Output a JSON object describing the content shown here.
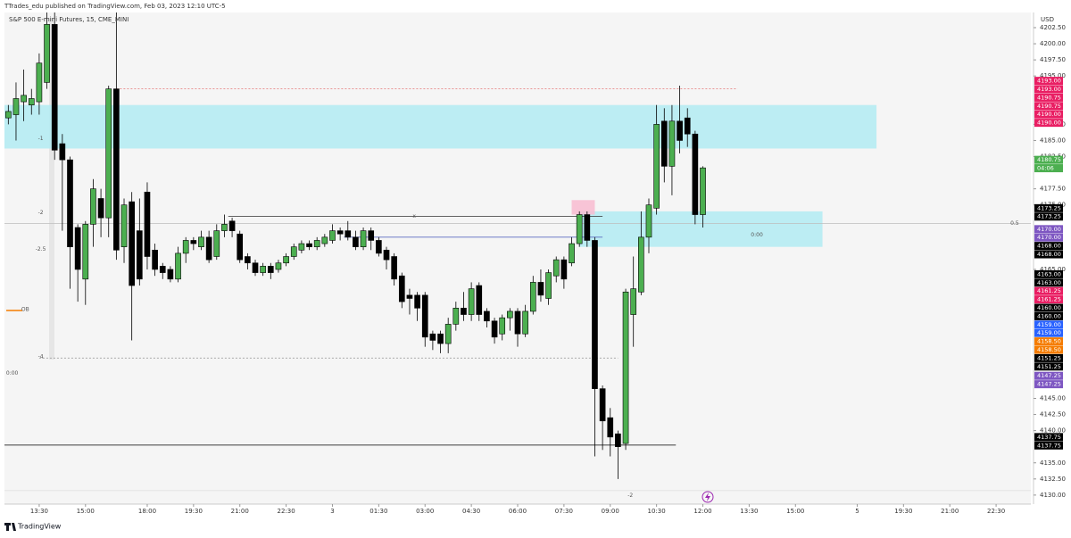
{
  "header": {
    "publisher": "TTrades_edu published on TradingView.com, Feb 03, 2023 12:10 UTC-5",
    "brand": "TradingView"
  },
  "chart_data": {
    "type": "candlestick",
    "title": "S&P 500 E-mini Futures, 15, CME_MINI",
    "currency": "USD",
    "up_color": "#4caf50",
    "down_color": "#000000",
    "xlim": [
      -4.5,
      128.5
    ],
    "ylim": [
      4128.6,
      4204.85
    ],
    "xticks": [
      {
        "value": 0,
        "label": "13:30"
      },
      {
        "value": 6,
        "label": "15:00"
      },
      {
        "value": 14,
        "label": "18:00"
      },
      {
        "value": 20,
        "label": "19:30"
      },
      {
        "value": 26,
        "label": "21:00"
      },
      {
        "value": 32,
        "label": "22:30"
      },
      {
        "value": 38,
        "label": "3"
      },
      {
        "value": 44,
        "label": "01:30"
      },
      {
        "value": 50,
        "label": "03:00"
      },
      {
        "value": 56,
        "label": "04:30"
      },
      {
        "value": 62,
        "label": "06:00"
      },
      {
        "value": 68,
        "label": "07:30"
      },
      {
        "value": 74,
        "label": "09:00"
      },
      {
        "value": 80,
        "label": "10:30"
      },
      {
        "value": 86,
        "label": "12:00"
      },
      {
        "value": 92,
        "label": "13:30"
      },
      {
        "value": 98,
        "label": "15:00"
      },
      {
        "value": 106,
        "label": "5"
      },
      {
        "value": 112,
        "label": "19:30"
      },
      {
        "value": 118,
        "label": "21:00"
      },
      {
        "value": 124,
        "label": "22:30"
      }
    ],
    "yticks": [
      {
        "value": 4202.5,
        "label": "4202.50"
      },
      {
        "value": 4200,
        "label": "4200.00"
      },
      {
        "value": 4197.5,
        "label": "4197.50"
      },
      {
        "value": 4195,
        "label": "4195.00"
      },
      {
        "value": 4187.5,
        "label": "4187.50"
      },
      {
        "value": 4185,
        "label": "4185.00"
      },
      {
        "value": 4182.5,
        "label": "4182.50"
      },
      {
        "value": 4177.5,
        "label": "4177.50"
      },
      {
        "value": 4175,
        "label": "4175.00"
      },
      {
        "value": 4165,
        "label": "4165.00"
      },
      {
        "value": 4145,
        "label": "4145.00"
      },
      {
        "value": 4142.5,
        "label": "4142.50"
      },
      {
        "value": 4140,
        "label": "4140.00"
      },
      {
        "value": 4135,
        "label": "4135.00"
      },
      {
        "value": 4132.5,
        "label": "4132.50"
      },
      {
        "value": 4130,
        "label": "4130.00"
      }
    ],
    "x": [
      -4,
      -3,
      -2,
      -1,
      0,
      1,
      2,
      3,
      4,
      5,
      6,
      7,
      8,
      9,
      10,
      11,
      12,
      13,
      14,
      15,
      16,
      17,
      18,
      19,
      20,
      21,
      22,
      23,
      24,
      25,
      26,
      27,
      28,
      29,
      30,
      31,
      32,
      33,
      34,
      35,
      36,
      37,
      38,
      39,
      40,
      41,
      42,
      43,
      44,
      45,
      46,
      47,
      48,
      49,
      50,
      51,
      52,
      53,
      54,
      55,
      56,
      57,
      58,
      59,
      60,
      61,
      62,
      63,
      64,
      65,
      66,
      67,
      68,
      69,
      70,
      71,
      72,
      73,
      74,
      75,
      76,
      77,
      78,
      79,
      80,
      81,
      82,
      83,
      84,
      85,
      86
    ],
    "open": [
      4188.5,
      4189,
      4191,
      4190.5,
      4191,
      4194,
      4203,
      4184.5,
      4182,
      4171.5,
      4163.5,
      4172,
      4176,
      4173,
      4193,
      4168.5,
      4175.5,
      4171,
      4177,
      4168,
      4165.5,
      4165,
      4163.5,
      4167.5,
      4169.5,
      4168.5,
      4170,
      4167,
      4171,
      4172.5,
      4170.5,
      4167,
      4166,
      4164.5,
      4165.5,
      4165,
      4166,
      4167,
      4168,
      4169,
      4168.5,
      4169,
      4169.5,
      4171,
      4171,
      4170,
      4168.5,
      4171,
      4169.5,
      4168,
      4167,
      4164,
      4161,
      4161,
      4161,
      4155,
      4155,
      4153.5,
      4156.5,
      4159,
      4158,
      4162.5,
      4158.5,
      4157,
      4155,
      4157.5,
      4158.5,
      4155,
      4158.5,
      4163,
      4160.5,
      4164,
      4166.5,
      4166,
      4169,
      4173.5,
      4169.5,
      4146.5,
      4142,
      4139.5,
      4138,
      4158,
      4161.5,
      4170,
      4174.5,
      4188,
      4181,
      4188,
      4188.5,
      4186,
      4173.5
    ],
    "high": [
      4190.5,
      4194,
      4196,
      4193,
      4198.5,
      4205,
      4205,
      4186,
      4182.5,
      4172,
      4172.5,
      4179,
      4177.5,
      4193.5,
      4207,
      4176,
      4177,
      4176,
      4178.5,
      4169,
      4166,
      4165.5,
      4168.5,
      4170,
      4170,
      4171,
      4171,
      4172,
      4173.5,
      4173,
      4171,
      4167.5,
      4166.5,
      4166,
      4166,
      4166.5,
      4167.5,
      4169,
      4169.5,
      4169.5,
      4170,
      4170.5,
      4172,
      4171.5,
      4172.5,
      4171,
      4171.5,
      4171.5,
      4170,
      4168.5,
      4167.5,
      4164.5,
      4162,
      4161.5,
      4161.5,
      4155.5,
      4155.5,
      4157.5,
      4160,
      4161.5,
      4163,
      4163,
      4159,
      4157.5,
      4158,
      4159,
      4159,
      4159.5,
      4164,
      4165,
      4165,
      4167,
      4167,
      4170,
      4174,
      4174,
      4170,
      4147,
      4143.5,
      4140,
      4162,
      4167,
      4174,
      4176,
      4190.5,
      4190,
      4190.5,
      4193.5,
      4190,
      4186.5,
      4181
    ],
    "low": [
      4187.5,
      4185,
      4188,
      4189,
      4189,
      4193,
      4182,
      4171,
      4162,
      4160,
      4159.5,
      4168.5,
      4170,
      4170,
      4166.5,
      4166,
      4154,
      4162.5,
      4165,
      4164,
      4163.5,
      4163,
      4163,
      4166,
      4168,
      4168,
      4166,
      4166.5,
      4170,
      4170,
      4166,
      4165,
      4164,
      4164,
      4163.5,
      4164.5,
      4165.5,
      4166.5,
      4167.5,
      4168,
      4168,
      4168.5,
      4169,
      4169.5,
      4169.5,
      4168,
      4168,
      4168,
      4167,
      4165,
      4162.5,
      4159,
      4158,
      4157,
      4153,
      4152.5,
      4152,
      4152,
      4155.5,
      4157,
      4157,
      4157,
      4156,
      4153.5,
      4154,
      4155.5,
      4153,
      4154.5,
      4158,
      4160,
      4159.5,
      4163,
      4162,
      4165.5,
      4168.5,
      4168.5,
      4136,
      4137,
      4136,
      4132.5,
      4137,
      4153,
      4161,
      4167.5,
      4173.5,
      4178.5,
      4176.5,
      4183,
      4184,
      4172,
      4171.5
    ],
    "close": [
      4189.5,
      4191.5,
      4192,
      4191.5,
      4197,
      4203,
      4183.5,
      4182,
      4168.5,
      4165,
      4172,
      4177.5,
      4173,
      4193,
      4168,
      4175,
      4162.5,
      4163.5,
      4167,
      4165,
      4164.5,
      4163.5,
      4167.5,
      4169.5,
      4169,
      4170,
      4166.5,
      4171,
      4172,
      4171,
      4166.5,
      4166,
      4164.5,
      4165.5,
      4164.5,
      4166,
      4167,
      4168.5,
      4169,
      4168.5,
      4169.5,
      4170,
      4171,
      4170.5,
      4170,
      4168.5,
      4171,
      4169.5,
      4167.5,
      4166.5,
      4163.5,
      4160,
      4160.5,
      4159,
      4154.5,
      4154,
      4153.5,
      4156.5,
      4159,
      4158,
      4162,
      4158,
      4157,
      4154.5,
      4157.5,
      4158.5,
      4155,
      4158.5,
      4163,
      4161,
      4164.5,
      4166.5,
      4163.5,
      4169,
      4173.5,
      4169.5,
      4146.5,
      4141.5,
      4139,
      4137.5,
      4161.5,
      4162,
      4170,
      4175,
      4187.5,
      4181,
      4188,
      4185,
      4186,
      4173.5,
      4180.75
    ],
    "zones": [
      {
        "x": [
          -4.5,
          108.5
        ],
        "prices": [
          4183.75,
          4190.5
        ],
        "color": "#b2ebf2"
      },
      {
        "x": [
          70,
          101.5
        ],
        "prices": [
          4168.5,
          4174
        ],
        "color": "#b2ebf2"
      },
      {
        "x": [
          69,
          72
        ],
        "prices": [
          4173.5,
          4175.75
        ],
        "color": "#f8bbd0"
      }
    ],
    "levels": [
      {
        "price": 4193,
        "x": [
          10,
          90.5
        ],
        "color": "#e57373",
        "dash": "2,2"
      },
      {
        "price": 4173.25,
        "x": [
          24.5,
          73
        ],
        "color": "#333333",
        "dash": ""
      },
      {
        "price": 4170,
        "x": [
          39.5,
          73
        ],
        "color": "#5c6bc0",
        "dash": ""
      },
      {
        "price": 4172.1,
        "x": [
          -4.5,
          128.5
        ],
        "color": "#bdbdbd",
        "dash": ""
      },
      {
        "price": 4151.25,
        "x": [
          0,
          75
        ],
        "color": "#9e9e9e",
        "dash": "2,2"
      },
      {
        "price": 4137.75,
        "x": [
          -4.5,
          82.5
        ],
        "color": "#000000",
        "dash": ""
      },
      {
        "price": 4130.7,
        "x": [
          -4.5,
          128.5
        ],
        "color": "#e0e0e0",
        "dash": ""
      }
    ],
    "annotations": [
      {
        "text": "-1",
        "x": 0.2,
        "price": 4185.3
      },
      {
        "text": "-2",
        "x": 0.2,
        "price": 4173.8
      },
      {
        "text": "-2.5",
        "x": 0.2,
        "price": 4168.1
      },
      {
        "text": "-4",
        "x": 0.2,
        "price": 4151.4
      },
      {
        "text": "OB",
        "x": -1.8,
        "price": 4158.8
      },
      {
        "text": "0:00",
        "x": -3.5,
        "price": 4148.9
      },
      {
        "text": "0:00",
        "x": 93,
        "price": 4170.3
      },
      {
        "text": "x",
        "x": 48.6,
        "price": 4173.25
      },
      {
        "text": "0.5",
        "x": 126.4,
        "price": 4172.1
      },
      {
        "text": "-2",
        "x": 76.6,
        "price": 4129.9
      }
    ],
    "price_badges": [
      {
        "value": 4193,
        "label": "4193.00",
        "color": "#e91e63"
      },
      {
        "value": 4193,
        "label": "4193.00",
        "color": "#e91e63"
      },
      {
        "value": 4190.75,
        "label": "4190.75",
        "color": "#e91e63"
      },
      {
        "value": 4190.75,
        "label": "4190.75",
        "color": "#e91e63"
      },
      {
        "value": 4190,
        "label": "4190.00",
        "color": "#e91e63"
      },
      {
        "value": 4190,
        "label": "4190.00",
        "color": "#e91e63"
      },
      {
        "value": 4180.75,
        "label": "4180.75",
        "color": "#4caf50"
      },
      {
        "value": 4180.75,
        "label": "04:06",
        "color": "#4caf50"
      },
      {
        "value": 4173.25,
        "label": "4173.25",
        "color": "#000000"
      },
      {
        "value": 4173.25,
        "label": "4173.25",
        "color": "#000000"
      },
      {
        "value": 4170,
        "label": "4170.00",
        "color": "#7e57c2"
      },
      {
        "value": 4170,
        "label": "4170.00",
        "color": "#7e57c2"
      },
      {
        "value": 4168,
        "label": "4168.00",
        "color": "#000000"
      },
      {
        "value": 4168,
        "label": "4168.00",
        "color": "#000000"
      },
      {
        "value": 4163,
        "label": "4163.00",
        "color": "#000000"
      },
      {
        "value": 4163,
        "label": "4163.00",
        "color": "#000000"
      },
      {
        "value": 4161.25,
        "label": "4161.25",
        "color": "#e91e63"
      },
      {
        "value": 4161.25,
        "label": "4161.25",
        "color": "#e91e63"
      },
      {
        "value": 4160,
        "label": "4160.00",
        "color": "#000000"
      },
      {
        "value": 4160,
        "label": "4160.00",
        "color": "#000000"
      },
      {
        "value": 4159,
        "label": "4159.00",
        "color": "#2962ff"
      },
      {
        "value": 4159,
        "label": "4159.00",
        "color": "#2962ff"
      },
      {
        "value": 4158.5,
        "label": "4158.50",
        "color": "#f57c00"
      },
      {
        "value": 4158.5,
        "label": "4158.50",
        "color": "#f57c00"
      },
      {
        "value": 4151.25,
        "label": "4151.25",
        "color": "#000000"
      },
      {
        "value": 4151.25,
        "label": "4151.25",
        "color": "#000000"
      },
      {
        "value": 4147.25,
        "label": "4147.25",
        "color": "#7e57c2"
      },
      {
        "value": 4147.25,
        "label": "4147.25",
        "color": "#7e57c2"
      },
      {
        "value": 4137.75,
        "label": "4137.75",
        "color": "#000000"
      },
      {
        "value": 4137.75,
        "label": "4137.75",
        "color": "#000000"
      }
    ]
  }
}
